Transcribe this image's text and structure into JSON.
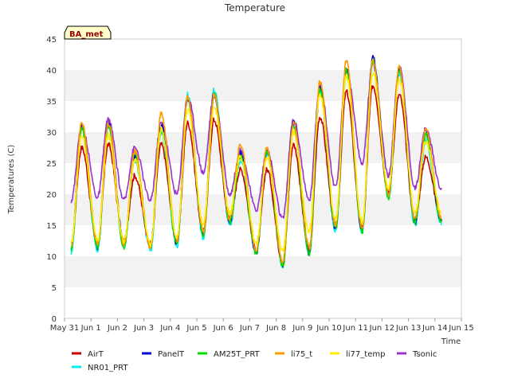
{
  "chart_data": {
    "type": "line",
    "title": "Temperature",
    "xlabel": "Time",
    "ylabel": "Temperatures (C)",
    "badge": "BA_met",
    "ylim": [
      0,
      45
    ],
    "yticks": [
      0,
      5,
      10,
      15,
      20,
      25,
      30,
      35,
      40,
      45
    ],
    "xlim": [
      0,
      15
    ],
    "xticks": [
      0,
      1,
      2,
      3,
      4,
      5,
      6,
      7,
      8,
      9,
      10,
      11,
      12,
      13,
      14,
      15
    ],
    "xtick_labels": [
      "May 31",
      "Jun 1",
      "Jun 2",
      "Jun 3",
      "Jun 4",
      "Jun 5",
      "Jun 6",
      "Jun 7",
      "Jun 8",
      "Jun 9",
      "Jun 10",
      "Jun 11",
      "Jun 12",
      "Jun 13",
      "Jun 14",
      "Jun 15"
    ],
    "grid": "horizontal-bands",
    "legend_position": "bottom",
    "daily_min_day": [
      0.25,
      1.25,
      2.25,
      3.25,
      4.25,
      5.25,
      6.25,
      7.25,
      8.25,
      9.25,
      10.25,
      11.25,
      12.25,
      13.25,
      14.25
    ],
    "daily_max_day": [
      0.65,
      1.65,
      2.65,
      3.65,
      4.65,
      5.65,
      6.65,
      7.65,
      8.65,
      9.65,
      10.65,
      11.65,
      12.65,
      13.65
    ],
    "series": [
      {
        "name": "AirT",
        "color": "#cc0000",
        "mins": [
          12.0,
          12.0,
          12.5,
          12.0,
          12.5,
          14.0,
          16.0,
          11.0,
          9.0,
          11.0,
          15.0,
          14.5,
          20.5,
          16.0,
          16.0
        ],
        "maxs": [
          27.5,
          28.0,
          23.0,
          28.0,
          31.5,
          32.0,
          24.0,
          24.0,
          28.0,
          32.5,
          36.5,
          37.5,
          36.0,
          26.0
        ]
      },
      {
        "name": "PanelT",
        "color": "#0000cc",
        "mins": [
          11.5,
          11.5,
          12.0,
          11.5,
          12.0,
          13.5,
          15.5,
          10.5,
          8.5,
          10.5,
          14.5,
          14.0,
          20.0,
          15.5,
          15.5
        ],
        "maxs": [
          31.0,
          31.5,
          26.0,
          31.0,
          35.5,
          36.0,
          26.5,
          27.0,
          31.5,
          37.0,
          40.5,
          42.0,
          40.0,
          30.0
        ]
      },
      {
        "name": "AM25T_PRT",
        "color": "#00dd00",
        "mins": [
          11.0,
          11.5,
          11.5,
          11.5,
          12.0,
          13.5,
          15.5,
          10.5,
          8.5,
          10.5,
          14.5,
          14.0,
          19.5,
          15.5,
          15.5
        ],
        "maxs": [
          30.5,
          31.0,
          26.5,
          30.5,
          35.5,
          36.0,
          26.0,
          27.0,
          31.0,
          37.0,
          40.0,
          41.5,
          40.0,
          29.5
        ]
      },
      {
        "name": "li75_t",
        "color": "#ff9900",
        "mins": [
          11.5,
          12.0,
          12.0,
          11.5,
          12.5,
          14.0,
          16.0,
          11.0,
          9.0,
          11.5,
          15.0,
          14.5,
          20.0,
          16.0,
          16.0
        ],
        "maxs": [
          31.5,
          31.5,
          27.0,
          33.0,
          35.5,
          36.0,
          28.0,
          27.5,
          31.5,
          38.0,
          41.5,
          41.5,
          40.5,
          30.5
        ]
      },
      {
        "name": "li77_temp",
        "color": "#ffee00",
        "mins": [
          12.0,
          12.5,
          12.5,
          12.0,
          13.0,
          15.0,
          17.0,
          12.0,
          11.0,
          14.0,
          16.0,
          15.5,
          21.0,
          17.0,
          17.0
        ],
        "maxs": [
          29.5,
          29.5,
          25.5,
          30.5,
          33.5,
          34.0,
          26.0,
          26.0,
          30.0,
          36.0,
          39.0,
          39.5,
          38.5,
          28.5
        ]
      },
      {
        "name": "Tsonic",
        "color": "#9933cc",
        "mins": [
          19.0,
          19.5,
          19.0,
          19.0,
          20.0,
          23.5,
          20.0,
          17.5,
          16.0,
          19.0,
          21.0,
          25.0,
          23.0,
          21.0,
          21.0
        ],
        "maxs": [
          31.0,
          32.0,
          27.5,
          31.5,
          35.5,
          36.0,
          27.0,
          27.0,
          32.0,
          37.5,
          40.0,
          41.0,
          40.5,
          30.5
        ]
      },
      {
        "name": "NR01_PRT",
        "color": "#00eeee",
        "mins": [
          10.5,
          11.0,
          11.5,
          11.0,
          11.5,
          13.0,
          15.0,
          10.5,
          8.5,
          10.5,
          14.0,
          14.0,
          19.5,
          15.0,
          15.0
        ],
        "maxs": [
          30.5,
          31.0,
          25.5,
          30.0,
          36.0,
          37.0,
          25.5,
          26.5,
          31.0,
          36.5,
          39.5,
          41.5,
          39.5,
          28.5
        ]
      }
    ]
  }
}
